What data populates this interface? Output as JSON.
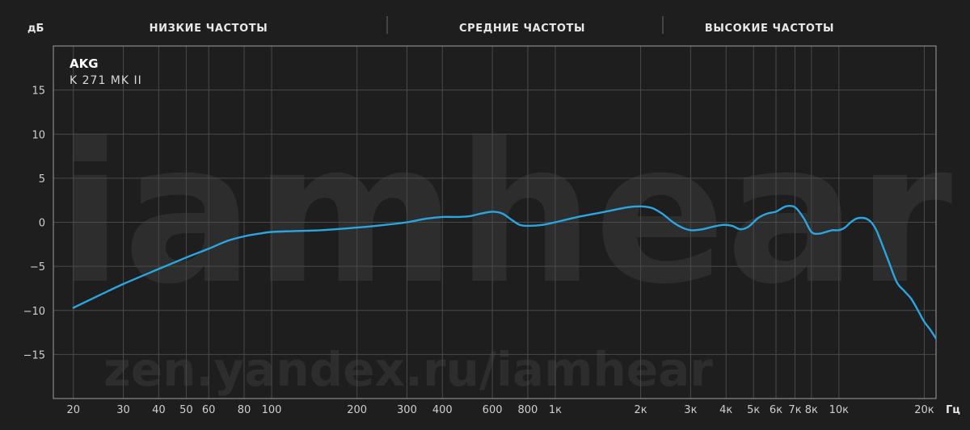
{
  "header": {
    "ylabel": "дБ",
    "xlabel": "Гц",
    "bands": [
      "НИЗКИЕ ЧАСТОТЫ",
      "СРЕДНИЕ ЧАСТОТЫ",
      "ВЫСОКИЕ ЧАСТОТЫ"
    ]
  },
  "legend": {
    "brand": "AKG",
    "model": "K 271 MK II"
  },
  "watermark": {
    "main": "iamhear",
    "url": "zen.yandex.ru/iamhear"
  },
  "colors": {
    "background": "#1e1e1e",
    "grid": "#4a4a4a",
    "curve": "#2aa6e0"
  },
  "chart_data": {
    "type": "line",
    "xscale": "log",
    "xlim": [
      17,
      22000
    ],
    "ylim": [
      -20,
      20
    ],
    "grid": true,
    "yticks": [
      15,
      10,
      5,
      0,
      -5,
      -10,
      -15
    ],
    "yticklabels": [
      "15",
      "10",
      "5",
      "0",
      "−5",
      "−10",
      "−15"
    ],
    "xticks": [
      20,
      30,
      40,
      50,
      60,
      80,
      100,
      200,
      300,
      400,
      600,
      800,
      1000,
      2000,
      3000,
      4000,
      5000,
      6000,
      7000,
      8000,
      10000,
      20000
    ],
    "xticklabels": [
      "20",
      "30",
      "40",
      "50",
      "60",
      "80",
      "100",
      "200",
      "300",
      "400",
      "600",
      "800",
      "1к",
      "2к",
      "3к",
      "4к",
      "5к",
      "6к",
      "7к",
      "8к",
      "10к",
      "20к"
    ],
    "series": [
      {
        "name": "AKG K 271 MK II",
        "x": [
          20,
          25,
          30,
          40,
          50,
          60,
          70,
          80,
          90,
          100,
          120,
          150,
          200,
          250,
          300,
          350,
          400,
          450,
          500,
          550,
          600,
          650,
          700,
          750,
          800,
          900,
          1000,
          1200,
          1500,
          1800,
          2000,
          2200,
          2400,
          2600,
          2800,
          3000,
          3300,
          3600,
          3900,
          4200,
          4500,
          4800,
          5200,
          5600,
          6000,
          6500,
          7000,
          7500,
          8000,
          8500,
          9000,
          9500,
          10000,
          10500,
          11000,
          11500,
          12000,
          12500,
          13000,
          13500,
          14000,
          15000,
          16000,
          17000,
          18000,
          19000,
          20000,
          21000,
          22000
        ],
        "y": [
          -9.7,
          -8.2,
          -7.0,
          -5.3,
          -4.0,
          -3.0,
          -2.1,
          -1.6,
          -1.3,
          -1.1,
          -1.0,
          -0.9,
          -0.6,
          -0.3,
          0.0,
          0.4,
          0.6,
          0.6,
          0.7,
          1.0,
          1.2,
          1.0,
          0.3,
          -0.3,
          -0.4,
          -0.3,
          0.0,
          0.6,
          1.2,
          1.7,
          1.8,
          1.6,
          0.9,
          0.0,
          -0.6,
          -0.9,
          -0.8,
          -0.5,
          -0.3,
          -0.4,
          -0.8,
          -0.5,
          0.5,
          1.0,
          1.2,
          1.8,
          1.7,
          0.5,
          -1.1,
          -1.3,
          -1.1,
          -0.9,
          -0.9,
          -0.6,
          0.0,
          0.4,
          0.5,
          0.4,
          0.0,
          -0.8,
          -2.0,
          -4.5,
          -6.8,
          -7.8,
          -8.7,
          -10.0,
          -11.3,
          -12.2,
          -13.2
        ]
      }
    ]
  }
}
